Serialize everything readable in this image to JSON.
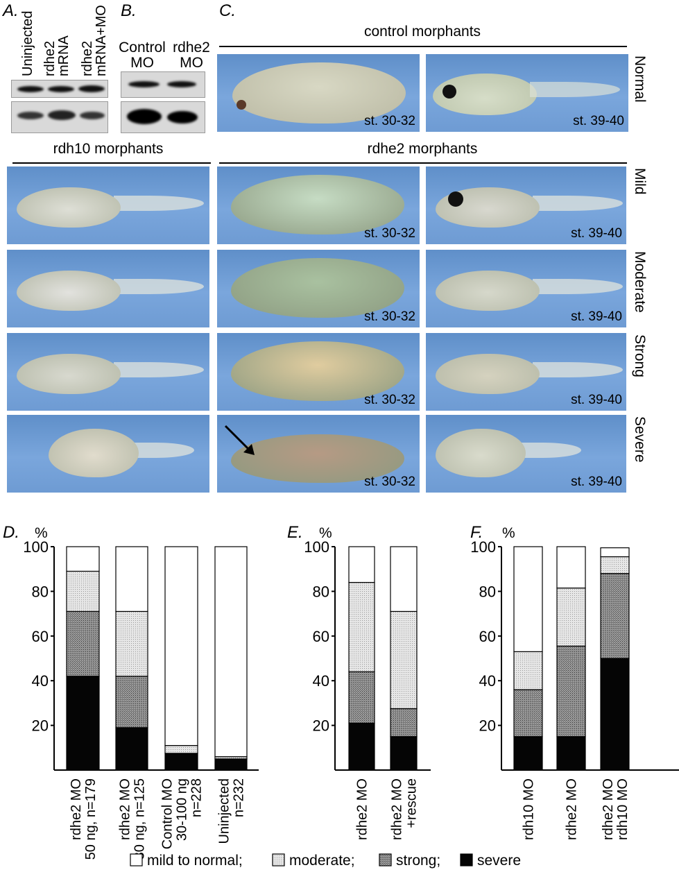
{
  "panel_a": {
    "label": "A.",
    "lanes": [
      "Uninjected",
      [
        "rdhe2",
        "mRNA"
      ],
      [
        "rdhe2",
        "mRNA+MO"
      ]
    ]
  },
  "panel_b": {
    "label": "B.",
    "lanes": [
      [
        "Control",
        "MO"
      ],
      [
        "rdhe2",
        "MO"
      ]
    ]
  },
  "panel_c": {
    "label": "C.",
    "header_control": "control morphants",
    "header_rdh10": "rdh10 morphants",
    "header_rdhe2": "rdhe2 morphants",
    "row_labels": [
      "Normal",
      "Mild",
      "Moderate",
      "Strong",
      "Severe"
    ],
    "stage_early": "st. 30-32",
    "stage_late": "st. 39-40"
  },
  "legend": [
    "mild to normal;",
    "moderate;",
    "strong;",
    "severe"
  ],
  "colors": {
    "severe": "#050505",
    "strong": "#8a8a8a",
    "moderate": "#d8d8d8",
    "mild": "#ffffff",
    "background_photo": "#6e9bd3"
  },
  "chart_data": [
    {
      "panel": "D.",
      "type": "bar",
      "stacked": true,
      "ylabel": "%",
      "ylim": [
        0,
        100
      ],
      "yticks": [
        20,
        40,
        60,
        80,
        100
      ],
      "categories": [
        [
          "rdhe2 MO",
          "50 ng, n=179"
        ],
        [
          "rdhe2 MO",
          "30 ng, n=125"
        ],
        [
          "Control MO",
          "30-100 ng",
          "n=228"
        ],
        [
          "Uninjected",
          "n=232"
        ]
      ],
      "series": [
        {
          "name": "severe",
          "values": [
            42,
            19,
            7.5,
            5
          ]
        },
        {
          "name": "strong",
          "values": [
            29,
            23,
            0,
            0
          ]
        },
        {
          "name": "moderate",
          "values": [
            18,
            29,
            3.5,
            1
          ]
        },
        {
          "name": "mild to normal",
          "values": [
            11,
            29,
            89,
            94
          ]
        }
      ]
    },
    {
      "panel": "E.",
      "type": "bar",
      "stacked": true,
      "ylabel": "%",
      "ylim": [
        0,
        100
      ],
      "yticks": [
        20,
        40,
        60,
        80,
        100
      ],
      "categories": [
        [
          "rdhe2 MO"
        ],
        [
          "rdhe2 MO",
          "+rescue"
        ]
      ],
      "series": [
        {
          "name": "severe",
          "values": [
            21,
            15
          ]
        },
        {
          "name": "strong",
          "values": [
            23,
            12.5
          ]
        },
        {
          "name": "moderate",
          "values": [
            40,
            43.5
          ]
        },
        {
          "name": "mild to normal",
          "values": [
            16,
            29
          ]
        }
      ]
    },
    {
      "panel": "F.",
      "type": "bar",
      "stacked": true,
      "ylabel": "%",
      "ylim": [
        0,
        100
      ],
      "yticks": [
        20,
        40,
        60,
        80,
        100
      ],
      "categories": [
        [
          "rdh10 MO"
        ],
        [
          "rdhe2 MO"
        ],
        [
          "rdhe2 MO",
          "rdh10 MO"
        ]
      ],
      "series": [
        {
          "name": "severe",
          "values": [
            15,
            15,
            50
          ]
        },
        {
          "name": "strong",
          "values": [
            21,
            40.5,
            38
          ]
        },
        {
          "name": "moderate",
          "values": [
            17,
            26,
            7.5
          ]
        },
        {
          "name": "mild to normal",
          "values": [
            47,
            18.5,
            4
          ]
        }
      ]
    }
  ]
}
